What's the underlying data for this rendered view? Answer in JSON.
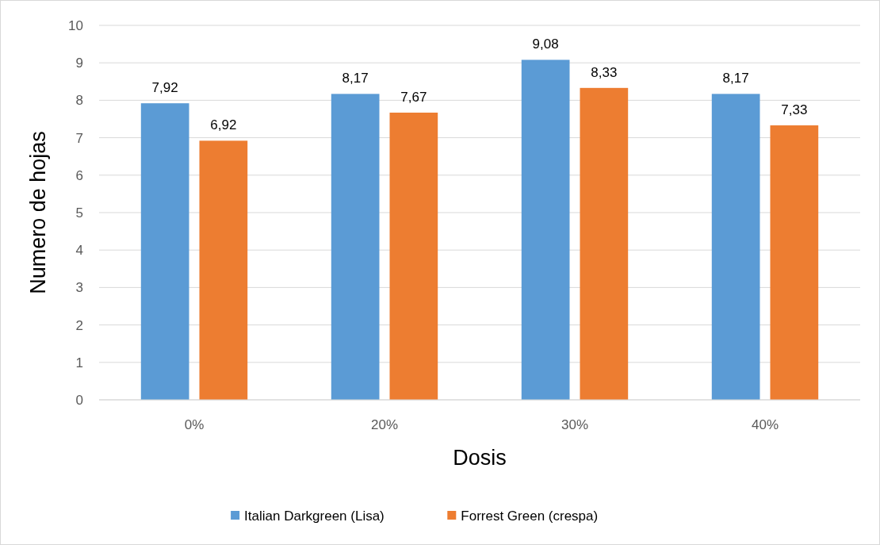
{
  "chart_data": {
    "type": "bar",
    "xlabel": "Dosis",
    "ylabel": "Numero de hojas",
    "categories": [
      "0%",
      "20%",
      "30%",
      "40%"
    ],
    "series": [
      {
        "name": "Italian Darkgreen (Lisa)",
        "color": "#5b9bd5",
        "values": [
          7.92,
          8.17,
          9.08,
          8.17
        ],
        "value_labels": [
          "7,92",
          "8,17",
          "9,08",
          "8,17"
        ]
      },
      {
        "name": "Forrest Green (crespa)",
        "color": "#ed7d31",
        "values": [
          6.92,
          7.67,
          8.33,
          7.33
        ],
        "value_labels": [
          "6,92",
          "7,67",
          "8,33",
          "7,33"
        ]
      }
    ],
    "ylim": [
      0,
      10
    ],
    "yticks": [
      0,
      1,
      2,
      3,
      4,
      5,
      6,
      7,
      8,
      9,
      10
    ],
    "grid": "y",
    "legend": "bottom"
  }
}
